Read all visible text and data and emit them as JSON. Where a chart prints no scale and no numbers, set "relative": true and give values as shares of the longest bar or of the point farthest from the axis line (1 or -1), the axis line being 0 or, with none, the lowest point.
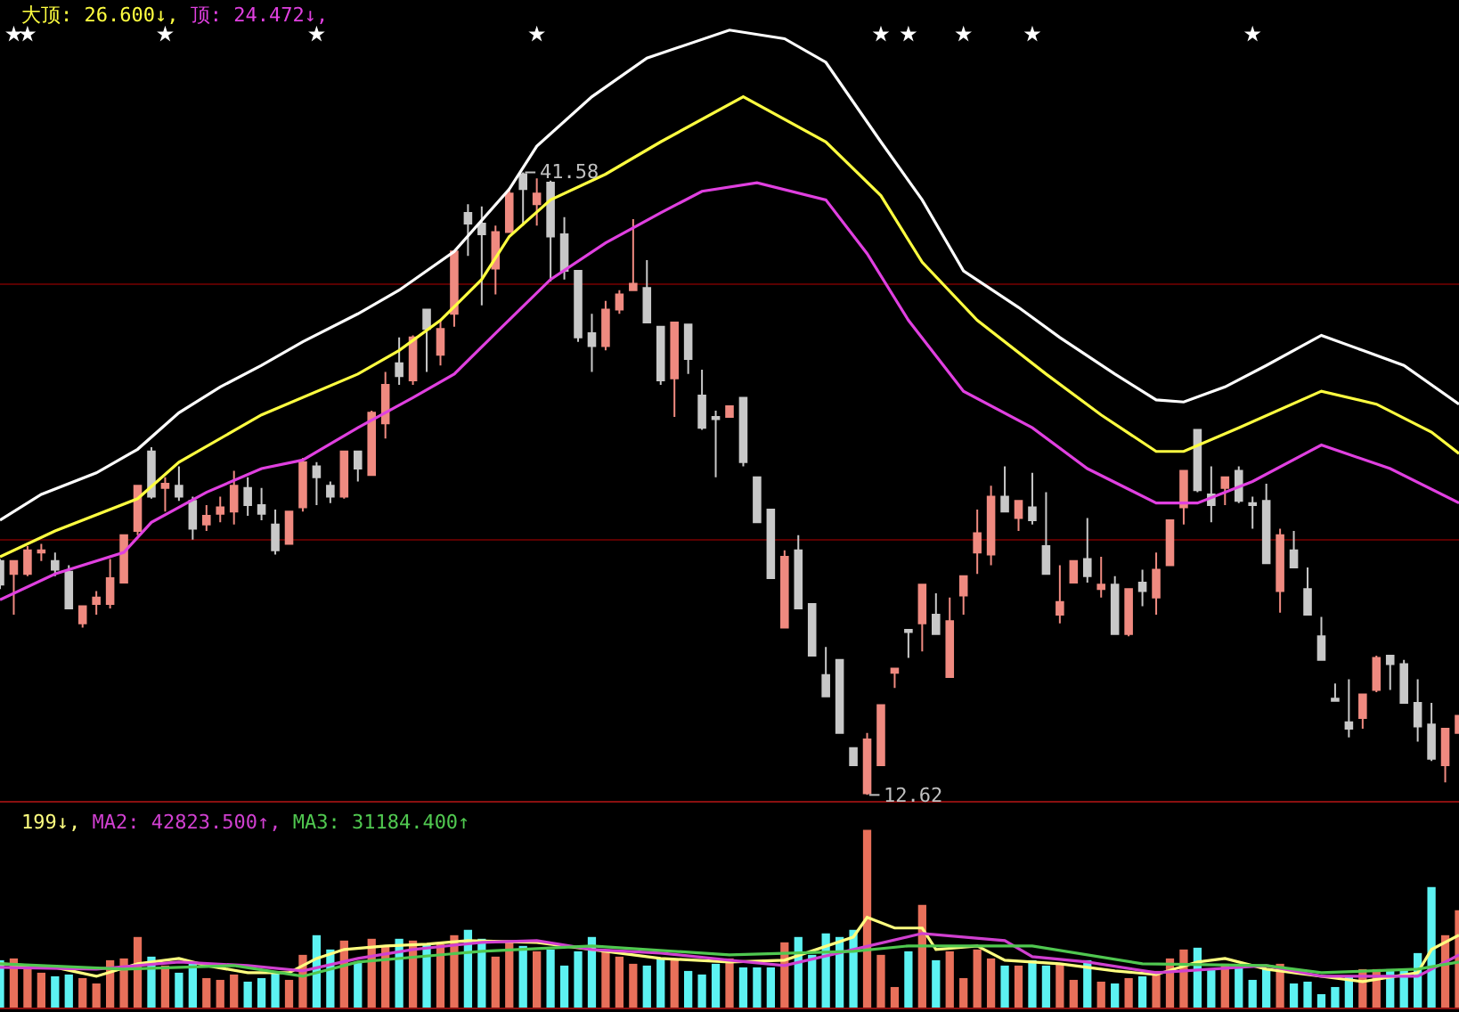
{
  "chart_data": [
    {
      "type": "candlestick",
      "categories": [
        null,
        null,
        null,
        null,
        null,
        null,
        null,
        null,
        null,
        null,
        null,
        null,
        null,
        null,
        null,
        null,
        null,
        null,
        null,
        null,
        null,
        null,
        null,
        null,
        null,
        null,
        null,
        null,
        null,
        null,
        null,
        null,
        null,
        null,
        null,
        null,
        null,
        null,
        null,
        null,
        null,
        null,
        null,
        null,
        null,
        null,
        null,
        null,
        null,
        null,
        null,
        null,
        null,
        null,
        null,
        null,
        null,
        null,
        null,
        null,
        null,
        null,
        null,
        null,
        null,
        null,
        null,
        null,
        null,
        null,
        null,
        null,
        null,
        null,
        null,
        null,
        null,
        null,
        null,
        null,
        null,
        null,
        null,
        null,
        null,
        null,
        null,
        null,
        null,
        null,
        null,
        null,
        null,
        null,
        null,
        null,
        null,
        null,
        null,
        null,
        null,
        null,
        null,
        null,
        null,
        null,
        null
      ],
      "ohlc": [
        [
          23.5,
          23.6,
          22.2,
          22.4
        ],
        [
          22.9,
          23.5,
          21.0,
          23.5
        ],
        [
          22.9,
          24.2,
          22.8,
          24.0
        ],
        [
          23.9,
          24.3,
          23.5,
          24.0
        ],
        [
          23.5,
          23.9,
          22.8,
          23.1
        ],
        [
          23.0,
          23.3,
          21.3,
          21.3
        ],
        [
          20.6,
          21.4,
          20.4,
          21.4
        ],
        [
          21.5,
          22.1,
          21.0,
          21.8
        ],
        [
          21.5,
          23.6,
          21.3,
          22.7
        ],
        [
          22.5,
          24.7,
          22.5,
          24.7
        ],
        [
          24.9,
          27.0,
          24.7,
          27.0
        ],
        [
          28.6,
          28.8,
          26.4,
          26.5
        ],
        [
          26.9,
          27.4,
          25.8,
          27.1
        ],
        [
          27.0,
          27.9,
          26.3,
          26.5
        ],
        [
          26.3,
          26.5,
          24.5,
          25.0
        ],
        [
          25.2,
          26.1,
          24.9,
          25.6
        ],
        [
          25.7,
          26.5,
          25.3,
          26.0
        ],
        [
          25.8,
          27.7,
          25.2,
          27.0
        ],
        [
          26.9,
          27.4,
          25.6,
          26.1
        ],
        [
          26.1,
          26.9,
          25.4,
          25.7
        ],
        [
          25.2,
          25.9,
          23.8,
          24.0
        ],
        [
          24.3,
          25.8,
          24.3,
          25.8
        ],
        [
          26.0,
          28.3,
          25.8,
          28.1
        ],
        [
          27.9,
          28.1,
          26.1,
          27.4
        ],
        [
          27.0,
          27.2,
          26.2,
          26.5
        ],
        [
          26.5,
          28.6,
          26.4,
          28.6
        ],
        [
          28.6,
          28.6,
          27.2,
          27.8
        ],
        [
          27.5,
          30.5,
          27.5,
          30.4
        ],
        [
          29.9,
          32.3,
          29.2,
          31.7
        ],
        [
          32.7,
          33.9,
          31.7,
          32.1
        ],
        [
          31.9,
          34.0,
          31.7,
          33.9
        ],
        [
          35.2,
          35.2,
          32.3,
          34.3
        ],
        [
          33.1,
          34.7,
          32.6,
          34.3
        ],
        [
          35.0,
          37.9,
          34.4,
          37.9
        ],
        [
          39.7,
          40.1,
          37.7,
          39.2
        ],
        [
          39.2,
          40.0,
          35.4,
          38.7
        ],
        [
          37.1,
          39.1,
          35.9,
          38.8
        ],
        [
          38.8,
          40.8,
          38.8,
          40.6
        ],
        [
          41.5,
          41.58,
          39.1,
          40.8
        ],
        [
          40.1,
          41.3,
          39.1,
          40.6
        ],
        [
          41.1,
          41.2,
          36.5,
          38.6
        ],
        [
          38.7,
          39.5,
          36.6,
          37.0
        ],
        [
          37.0,
          37.0,
          33.7,
          33.9
        ],
        [
          34.1,
          35.0,
          32.3,
          33.5
        ],
        [
          33.5,
          35.6,
          33.3,
          35.2
        ],
        [
          35.2,
          36.1,
          35.0,
          35.9
        ],
        [
          36.1,
          39.4,
          36.1,
          36.4
        ],
        [
          36.2,
          37.5,
          34.6,
          34.6
        ],
        [
          34.4,
          34.4,
          31.7,
          31.9
        ],
        [
          32.0,
          34.6,
          30.2,
          34.6
        ],
        [
          34.5,
          34.5,
          32.2,
          32.9
        ],
        [
          31.2,
          32.4,
          29.6,
          29.7
        ],
        [
          30.2,
          30.5,
          27.4,
          30.1
        ],
        [
          30.2,
          30.7,
          30.2,
          30.7
        ],
        [
          31.1,
          31.1,
          27.9,
          28.1
        ],
        [
          27.4,
          27.4,
          25.3,
          25.3
        ],
        [
          25.9,
          25.9,
          22.7,
          22.7
        ],
        [
          20.4,
          24.0,
          20.4,
          23.7
        ],
        [
          24.0,
          24.7,
          21.3,
          21.3
        ],
        [
          21.5,
          21.5,
          19.1,
          19.1
        ],
        [
          18.2,
          19.5,
          17.2,
          17.2
        ],
        [
          18.9,
          18.9,
          15.5,
          15.5
        ],
        [
          14.8,
          14.8,
          14.0,
          14.0
        ],
        [
          12.7,
          15.5,
          12.62,
          15.2
        ],
        [
          14.0,
          16.8,
          14.0,
          16.8
        ],
        [
          18.3,
          18.5,
          17.6,
          18.5
        ],
        [
          20.3,
          20.3,
          19.0,
          20.2
        ],
        [
          20.6,
          22.4,
          19.3,
          22.4
        ],
        [
          21.0,
          22.0,
          20.1,
          20.1
        ],
        [
          18.1,
          21.8,
          18.1,
          20.7
        ],
        [
          21.9,
          22.8,
          21.0,
          22.8
        ],
        [
          23.9,
          25.9,
          22.9,
          24.8
        ],
        [
          23.8,
          27.0,
          23.3,
          26.5
        ],
        [
          26.5,
          27.9,
          25.8,
          25.8
        ],
        [
          25.5,
          26.3,
          24.9,
          26.3
        ],
        [
          26.0,
          27.6,
          25.2,
          25.4
        ],
        [
          24.2,
          26.7,
          22.9,
          22.9
        ],
        [
          21.0,
          23.3,
          20.6,
          21.6
        ],
        [
          22.5,
          23.5,
          22.5,
          23.5
        ],
        [
          23.6,
          25.5,
          22.5,
          22.8
        ],
        [
          22.2,
          23.7,
          21.8,
          22.4
        ],
        [
          22.4,
          22.8,
          20.1,
          20.1
        ],
        [
          20.1,
          22.2,
          20.0,
          22.2
        ],
        [
          22.5,
          23.1,
          21.4,
          22.1
        ],
        [
          21.8,
          23.9,
          21.0,
          23.1
        ],
        [
          23.3,
          25.4,
          23.3,
          25.4
        ],
        [
          26.0,
          27.7,
          25.2,
          27.7
        ],
        [
          29.6,
          29.6,
          26.7,
          26.8
        ],
        [
          26.6,
          27.9,
          25.3,
          26.1
        ],
        [
          26.9,
          27.4,
          26.1,
          27.4
        ],
        [
          27.7,
          27.9,
          26.2,
          26.3
        ],
        [
          26.2,
          26.5,
          25.0,
          26.1
        ],
        [
          26.3,
          27.1,
          23.4,
          23.4
        ],
        [
          22.1,
          25.0,
          21.1,
          24.7
        ],
        [
          24.0,
          24.9,
          23.2,
          23.2
        ],
        [
          22.2,
          23.2,
          21.0,
          21.0
        ],
        [
          20.0,
          20.9,
          18.9,
          18.9
        ],
        [
          17.1,
          17.8,
          17.0,
          17.0
        ],
        [
          16.0,
          18.0,
          15.3,
          15.7
        ],
        [
          16.2,
          17.3,
          15.7,
          17.3
        ],
        [
          17.5,
          19.1,
          17.4,
          19.0
        ],
        [
          19.1,
          19.1,
          17.5,
          18.7
        ],
        [
          18.7,
          18.9,
          16.9,
          16.9
        ],
        [
          16.9,
          18.0,
          15.1,
          15.8
        ],
        [
          15.9,
          16.9,
          14.2,
          14.3
        ],
        [
          14.0,
          15.7,
          13.2,
          15.7
        ],
        [
          15.5,
          16.3,
          15.5,
          16.3
        ]
      ],
      "colors": [
        "#c8c8c8",
        "#ef8a80",
        "#ef8a80",
        "#ef8a80",
        "#c8c8c8",
        "#c8c8c8",
        "#ef8a80",
        "#ef8a80",
        "#ef8a80",
        "#ef8a80",
        "#ef8a80",
        "#c8c8c8",
        "#ef8a80",
        "#c8c8c8",
        "#c8c8c8",
        "#ef8a80",
        "#ef8a80",
        "#ef8a80",
        "#c8c8c8",
        "#c8c8c8",
        "#c8c8c8",
        "#ef8a80",
        "#ef8a80",
        "#c8c8c8",
        "#c8c8c8",
        "#ef8a80",
        "#c8c8c8",
        "#ef8a80",
        "#ef8a80",
        "#c8c8c8",
        "#ef8a80",
        "#c8c8c8",
        "#ef8a80",
        "#ef8a80",
        "#c8c8c8",
        "#c8c8c8",
        "#ef8a80",
        "#ef8a80",
        "#c8c8c8",
        "#ef8a80",
        "#c8c8c8",
        "#c8c8c8",
        "#c8c8c8",
        "#c8c8c8",
        "#ef8a80",
        "#ef8a80",
        "#ef8a80",
        "#c8c8c8",
        "#c8c8c8",
        "#ef8a80",
        "#c8c8c8",
        "#c8c8c8",
        "#c8c8c8",
        "#ef8a80",
        "#c8c8c8",
        "#c8c8c8",
        "#c8c8c8",
        "#ef8a80",
        "#c8c8c8",
        "#c8c8c8",
        "#c8c8c8",
        "#c8c8c8",
        "#c8c8c8",
        "#ef8a80",
        "#ef8a80",
        "#ef8a80",
        "#c8c8c8",
        "#ef8a80",
        "#c8c8c8",
        "#ef8a80",
        "#ef8a80",
        "#ef8a80",
        "#ef8a80",
        "#c8c8c8",
        "#ef8a80",
        "#c8c8c8",
        "#c8c8c8",
        "#ef8a80",
        "#ef8a80",
        "#c8c8c8",
        "#ef8a80",
        "#c8c8c8",
        "#ef8a80",
        "#c8c8c8",
        "#ef8a80",
        "#ef8a80",
        "#ef8a80",
        "#c8c8c8",
        "#c8c8c8",
        "#ef8a80",
        "#c8c8c8",
        "#c8c8c8",
        "#c8c8c8",
        "#ef8a80",
        "#c8c8c8",
        "#c8c8c8",
        "#c8c8c8",
        "#c8c8c8",
        "#c8c8c8",
        "#ef8a80",
        "#ef8a80",
        "#c8c8c8",
        "#c8c8c8",
        "#c8c8c8",
        "#c8c8c8",
        "#ef8a80",
        "#ef8a80"
      ],
      "series": [
        {
          "type": "line",
          "color": "#ffffff",
          "values": [
            25.4,
            null,
            null,
            26.6,
            null,
            null,
            null,
            27.6,
            null,
            null,
            28.7,
            null,
            null,
            30.4,
            null,
            null,
            31.6,
            null,
            null,
            32.6,
            null,
            null,
            33.7,
            null,
            null,
            null,
            35.0,
            null,
            null,
            36.1,
            null,
            null,
            null,
            37.9,
            null,
            null,
            null,
            40.8,
            null,
            42.8,
            null,
            null,
            null,
            45.1,
            null,
            null,
            null,
            46.9,
            null,
            null,
            null,
            null,
            null,
            48.2,
            null,
            null,
            null,
            47.8,
            null,
            null,
            46.7,
            null,
            null,
            null,
            43.0,
            null,
            null,
            40.3,
            null,
            null,
            37.0,
            null,
            null,
            null,
            35.3,
            null,
            null,
            33.9,
            null,
            null,
            null,
            32.2,
            null,
            null,
            31.0,
            null,
            30.9,
            null,
            null,
            31.6,
            null,
            null,
            32.6,
            null,
            null,
            null,
            34.0,
            null,
            null,
            33.3,
            null,
            null,
            32.6,
            null,
            null,
            null,
            30.8
          ]
        },
        {
          "type": "line",
          "name": "大顶: 26.600↓,",
          "color": "#ffff40",
          "values": [
            23.7,
            null,
            null,
            null,
            24.9,
            null,
            null,
            null,
            null,
            null,
            26.4,
            null,
            null,
            28.1,
            null,
            null,
            null,
            null,
            null,
            30.3,
            null,
            null,
            null,
            null,
            null,
            null,
            32.2,
            null,
            null,
            33.3,
            null,
            null,
            34.7,
            null,
            null,
            36.6,
            null,
            38.6,
            null,
            null,
            40.3,
            null,
            null,
            null,
            41.5,
            null,
            null,
            null,
            43.0,
            null,
            null,
            null,
            null,
            null,
            45.1,
            null,
            null,
            null,
            null,
            null,
            43.0,
            null,
            null,
            null,
            40.5,
            null,
            null,
            37.4,
            null,
            null,
            null,
            34.7,
            null,
            null,
            null,
            null,
            32.2,
            null,
            null,
            null,
            30.3,
            null,
            null,
            null,
            28.6,
            null,
            28.6,
            null,
            null,
            null,
            29.7,
            null,
            null,
            null,
            null,
            null,
            31.4,
            null,
            null,
            null,
            30.8,
            null,
            null,
            null,
            29.5,
            null,
            28.5
          ]
        },
        {
          "type": "line",
          "name": "顶: 24.472↓,",
          "color": "#e040e0",
          "values": [
            21.7,
            null,
            null,
            null,
            22.9,
            null,
            null,
            null,
            null,
            23.9,
            null,
            25.3,
            null,
            null,
            null,
            26.7,
            null,
            null,
            null,
            27.8,
            null,
            null,
            28.2,
            null,
            null,
            null,
            29.7,
            null,
            null,
            null,
            31.1,
            null,
            null,
            32.2,
            null,
            null,
            34.1,
            null,
            null,
            null,
            36.6,
            null,
            null,
            null,
            38.3,
            null,
            null,
            null,
            39.7,
            null,
            null,
            40.7,
            null,
            null,
            null,
            41.1,
            null,
            null,
            null,
            null,
            40.3,
            null,
            null,
            37.8,
            null,
            null,
            34.7,
            null,
            null,
            null,
            31.4,
            null,
            null,
            null,
            null,
            29.7,
            null,
            null,
            null,
            27.8,
            null,
            null,
            null,
            null,
            26.2,
            null,
            null,
            26.2,
            null,
            null,
            null,
            27.2,
            null,
            null,
            null,
            null,
            28.9,
            null,
            null,
            null,
            null,
            27.8,
            null,
            null,
            null,
            null,
            26.2
          ]
        },
        {
          "type": "scatter",
          "color": "#ffffff",
          "marker": "star",
          "values": [
            null,
            48.0,
            48.0,
            null,
            null,
            null,
            null,
            null,
            null,
            null,
            null,
            null,
            48.0,
            null,
            null,
            null,
            null,
            null,
            null,
            null,
            null,
            null,
            null,
            48.0,
            null,
            null,
            null,
            null,
            null,
            null,
            null,
            null,
            null,
            null,
            null,
            null,
            null,
            null,
            null,
            48.0,
            null,
            null,
            null,
            null,
            null,
            null,
            null,
            null,
            null,
            null,
            null,
            null,
            null,
            null,
            null,
            null,
            null,
            null,
            null,
            null,
            null,
            null,
            null,
            null,
            48.0,
            null,
            48.0,
            null,
            null,
            null,
            48.0,
            null,
            null,
            null,
            null,
            48.0,
            null,
            null,
            null,
            null,
            null,
            null,
            null,
            null,
            null,
            null,
            null,
            null,
            null,
            null,
            null,
            48.0,
            null,
            null,
            null,
            null,
            null,
            null,
            null,
            null,
            null,
            null,
            null,
            null,
            null,
            null,
            null
          ]
        }
      ],
      "annotations": [
        "41.58",
        "12.62"
      ],
      "ylim": [
        12.3,
        49.6
      ],
      "yticks": [
        {
          "value": 24.5,
          "label": null
        },
        {
          "value": 36.4,
          "label": null
        }
      ],
      "grid": "y"
    },
    {
      "type": "bar",
      "relative": true,
      "categories": [
        null,
        null,
        null,
        null,
        null,
        null,
        null,
        null,
        null,
        null,
        null,
        null,
        null,
        null,
        null,
        null,
        null,
        null,
        null,
        null,
        null,
        null,
        null,
        null,
        null,
        null,
        null,
        null,
        null,
        null,
        null,
        null,
        null,
        null,
        null,
        null,
        null,
        null,
        null,
        null,
        null,
        null,
        null,
        null,
        null,
        null,
        null,
        null,
        null,
        null,
        null,
        null,
        null,
        null,
        null,
        null,
        null,
        null,
        null,
        null,
        null,
        null,
        null,
        null,
        null,
        null,
        null,
        null,
        null,
        null,
        null,
        null,
        null,
        null,
        null,
        null,
        null,
        null,
        null,
        null,
        null,
        null,
        null,
        null,
        null,
        null,
        null,
        null,
        null,
        null,
        null,
        null,
        null,
        null,
        null,
        null,
        null,
        null,
        null,
        null,
        null,
        null,
        null,
        null,
        null,
        null,
        null
      ],
      "values": [
        0.27,
        0.28,
        0.22,
        0.2,
        0.18,
        0.19,
        0.17,
        0.14,
        0.27,
        0.28,
        0.4,
        0.29,
        0.24,
        0.2,
        0.26,
        0.17,
        0.16,
        0.19,
        0.15,
        0.17,
        0.2,
        0.16,
        0.3,
        0.41,
        0.33,
        0.38,
        0.26,
        0.39,
        0.35,
        0.39,
        0.38,
        0.36,
        0.36,
        0.41,
        0.44,
        0.39,
        0.29,
        0.38,
        0.35,
        0.32,
        0.33,
        0.24,
        0.32,
        0.4,
        0.33,
        0.29,
        0.25,
        0.24,
        0.28,
        0.27,
        0.21,
        0.19,
        0.25,
        0.28,
        0.23,
        0.23,
        0.23,
        0.37,
        0.4,
        0.3,
        0.42,
        0.4,
        0.44,
        1,
        0.3,
        0.12,
        0.32,
        0.58,
        0.27,
        0.32,
        0.17,
        0.33,
        0.28,
        0.24,
        0.24,
        0.27,
        0.24,
        0.25,
        0.16,
        0.27,
        0.15,
        0.14,
        0.17,
        0.18,
        0.21,
        0.28,
        0.33,
        0.34,
        0.22,
        0.25,
        0.23,
        0.16,
        0.22,
        0.25,
        0.14,
        0.15,
        0.08,
        0.12,
        0.18,
        0.22,
        0.22,
        0.22,
        0.22,
        0.31,
        0.68,
        0.41,
        0.55
      ],
      "colors": [
        "#5cf2f2",
        "#e8705a",
        "#e8705a",
        "#e8705a",
        "#5cf2f2",
        "#5cf2f2",
        "#e8705a",
        "#e8705a",
        "#e8705a",
        "#e8705a",
        "#e8705a",
        "#5cf2f2",
        "#e8705a",
        "#5cf2f2",
        "#5cf2f2",
        "#e8705a",
        "#e8705a",
        "#e8705a",
        "#5cf2f2",
        "#5cf2f2",
        "#5cf2f2",
        "#e8705a",
        "#e8705a",
        "#5cf2f2",
        "#5cf2f2",
        "#e8705a",
        "#5cf2f2",
        "#e8705a",
        "#e8705a",
        "#5cf2f2",
        "#e8705a",
        "#5cf2f2",
        "#e8705a",
        "#e8705a",
        "#5cf2f2",
        "#5cf2f2",
        "#e8705a",
        "#e8705a",
        "#5cf2f2",
        "#e8705a",
        "#5cf2f2",
        "#5cf2f2",
        "#5cf2f2",
        "#5cf2f2",
        "#e8705a",
        "#e8705a",
        "#e8705a",
        "#5cf2f2",
        "#5cf2f2",
        "#e8705a",
        "#5cf2f2",
        "#5cf2f2",
        "#5cf2f2",
        "#e8705a",
        "#5cf2f2",
        "#5cf2f2",
        "#5cf2f2",
        "#e8705a",
        "#5cf2f2",
        "#5cf2f2",
        "#5cf2f2",
        "#5cf2f2",
        "#5cf2f2",
        "#e8705a",
        "#e8705a",
        "#e8705a",
        "#5cf2f2",
        "#e8705a",
        "#5cf2f2",
        "#e8705a",
        "#e8705a",
        "#e8705a",
        "#e8705a",
        "#5cf2f2",
        "#e8705a",
        "#5cf2f2",
        "#5cf2f2",
        "#e8705a",
        "#e8705a",
        "#5cf2f2",
        "#e8705a",
        "#5cf2f2",
        "#e8705a",
        "#5cf2f2",
        "#e8705a",
        "#e8705a",
        "#e8705a",
        "#5cf2f2",
        "#5cf2f2",
        "#e8705a",
        "#5cf2f2",
        "#5cf2f2",
        "#5cf2f2",
        "#e8705a",
        "#5cf2f2",
        "#5cf2f2",
        "#5cf2f2",
        "#5cf2f2",
        "#5cf2f2",
        "#e8705a",
        "#e8705a",
        "#5cf2f2",
        "#5cf2f2",
        "#5cf2f2",
        "#5cf2f2",
        "#e8705a",
        "#e8705a"
      ],
      "series": [
        {
          "type": "line",
          "name": "199↓,",
          "color": "#ffff80",
          "values": [
            0.25,
            null,
            null,
            null,
            0.23,
            null,
            null,
            0.18,
            null,
            null,
            0.25,
            null,
            null,
            0.28,
            null,
            0.24,
            null,
            null,
            0.2,
            null,
            null,
            0.2,
            null,
            0.28,
            null,
            0.33,
            null,
            null,
            0.35,
            null,
            null,
            0.36,
            null,
            null,
            0.38,
            null,
            null,
            null,
            null,
            0.37,
            null,
            null,
            null,
            0.33,
            null,
            null,
            null,
            null,
            0.28,
            null,
            null,
            null,
            null,
            0.26,
            null,
            null,
            null,
            0.27,
            null,
            null,
            null,
            null,
            0.4,
            0.51,
            null,
            0.45,
            null,
            0.45,
            0.33,
            null,
            null,
            0.35,
            null,
            0.27,
            null,
            null,
            null,
            0.25,
            null,
            null,
            null,
            0.21,
            null,
            null,
            0.19,
            null,
            null,
            0.26,
            null,
            0.28,
            null,
            null,
            0.22,
            null,
            null,
            null,
            0.18,
            null,
            null,
            0.15,
            null,
            null,
            null,
            0.2,
            0.33,
            null,
            0.41
          ]
        },
        {
          "type": "line",
          "name": "MA2: 42823.500↑,",
          "color": "#d040d0",
          "values": [
            0.23,
            null,
            null,
            null,
            null,
            null,
            null,
            0.22,
            null,
            null,
            null,
            null,
            null,
            0.26,
            null,
            null,
            null,
            null,
            0.24,
            null,
            null,
            null,
            0.21,
            null,
            null,
            null,
            0.28,
            null,
            null,
            null,
            0.33,
            null,
            null,
            null,
            null,
            0.37,
            null,
            null,
            null,
            0.38,
            null,
            null,
            null,
            0.33,
            null,
            null,
            null,
            null,
            0.31,
            null,
            null,
            null,
            null,
            0.27,
            null,
            null,
            null,
            0.24,
            null,
            null,
            null,
            null,
            0.33,
            null,
            null,
            null,
            null,
            0.42,
            null,
            null,
            0.4,
            null,
            null,
            0.38,
            null,
            0.29,
            null,
            null,
            null,
            0.26,
            null,
            null,
            null,
            null,
            0.2,
            null,
            null,
            null,
            0.22,
            null,
            null,
            null,
            0.24,
            null,
            null,
            null,
            0.18,
            null,
            null,
            null,
            null,
            null,
            null,
            0.18,
            null,
            null,
            0.3
          ]
        },
        {
          "type": "line",
          "name": "MA3: 31184.400↑",
          "color": "#50c850",
          "values": [
            0.25,
            null,
            null,
            null,
            null,
            null,
            null,
            null,
            null,
            0.22,
            null,
            null,
            null,
            null,
            null,
            null,
            null,
            0.24,
            null,
            null,
            null,
            null,
            0.18,
            null,
            null,
            null,
            0.26,
            null,
            null,
            null,
            null,
            null,
            null,
            null,
            null,
            0.32,
            null,
            null,
            null,
            null,
            null,
            null,
            null,
            0.35,
            null,
            null,
            null,
            null,
            null,
            null,
            null,
            null,
            null,
            0.3,
            null,
            null,
            null,
            null,
            null,
            null,
            null,
            null,
            0.32,
            null,
            null,
            null,
            0.35,
            null,
            null,
            null,
            null,
            null,
            null,
            null,
            null,
            0.35,
            null,
            null,
            null,
            null,
            null,
            null,
            null,
            0.25,
            null,
            null,
            null,
            null,
            null,
            null,
            null,
            null,
            0.24,
            null,
            null,
            null,
            0.2,
            null,
            null,
            null,
            null,
            null,
            null,
            0.22,
            null,
            null,
            0.26
          ]
        }
      ]
    }
  ]
}
